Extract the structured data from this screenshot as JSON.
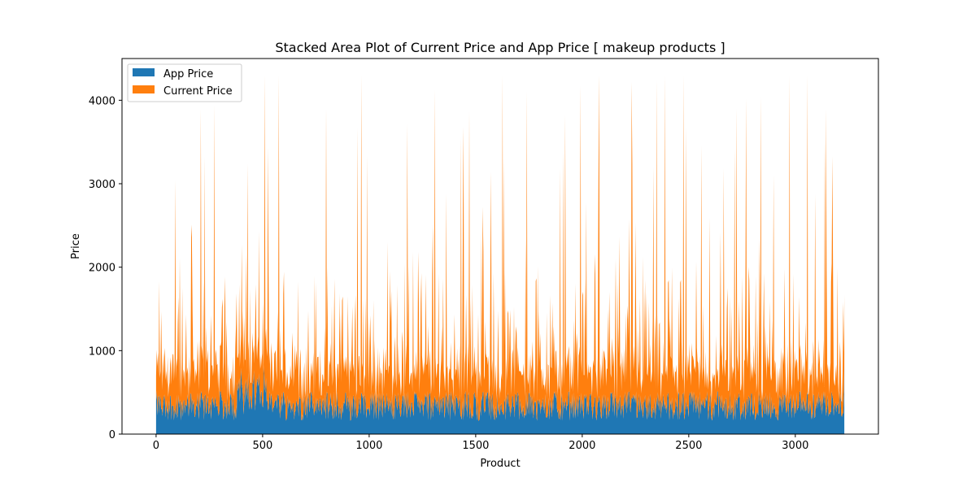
{
  "chart_data": {
    "type": "area",
    "stacked": true,
    "title": "Stacked Area Plot of Current Price and App Price [ makeup products ]",
    "xlabel": "Product",
    "ylabel": "Price",
    "xlim": [
      -160,
      3390
    ],
    "ylim": [
      0,
      4500
    ],
    "x_ticks": [
      0,
      500,
      1000,
      1500,
      2000,
      2500,
      3000
    ],
    "y_ticks": [
      0,
      1000,
      2000,
      3000,
      4000
    ],
    "n_products": 3231,
    "legend_position": "upper left",
    "grid": false,
    "series": [
      {
        "name": "App Price",
        "color": "#1f77b4",
        "typical_range": [
          150,
          600
        ],
        "last_value": 820
      },
      {
        "name": "Current Price",
        "color": "#ff7f0e",
        "typical_range": [
          150,
          1100
        ],
        "last_value": 850
      }
    ],
    "peak_stacked_total": 4300
  }
}
